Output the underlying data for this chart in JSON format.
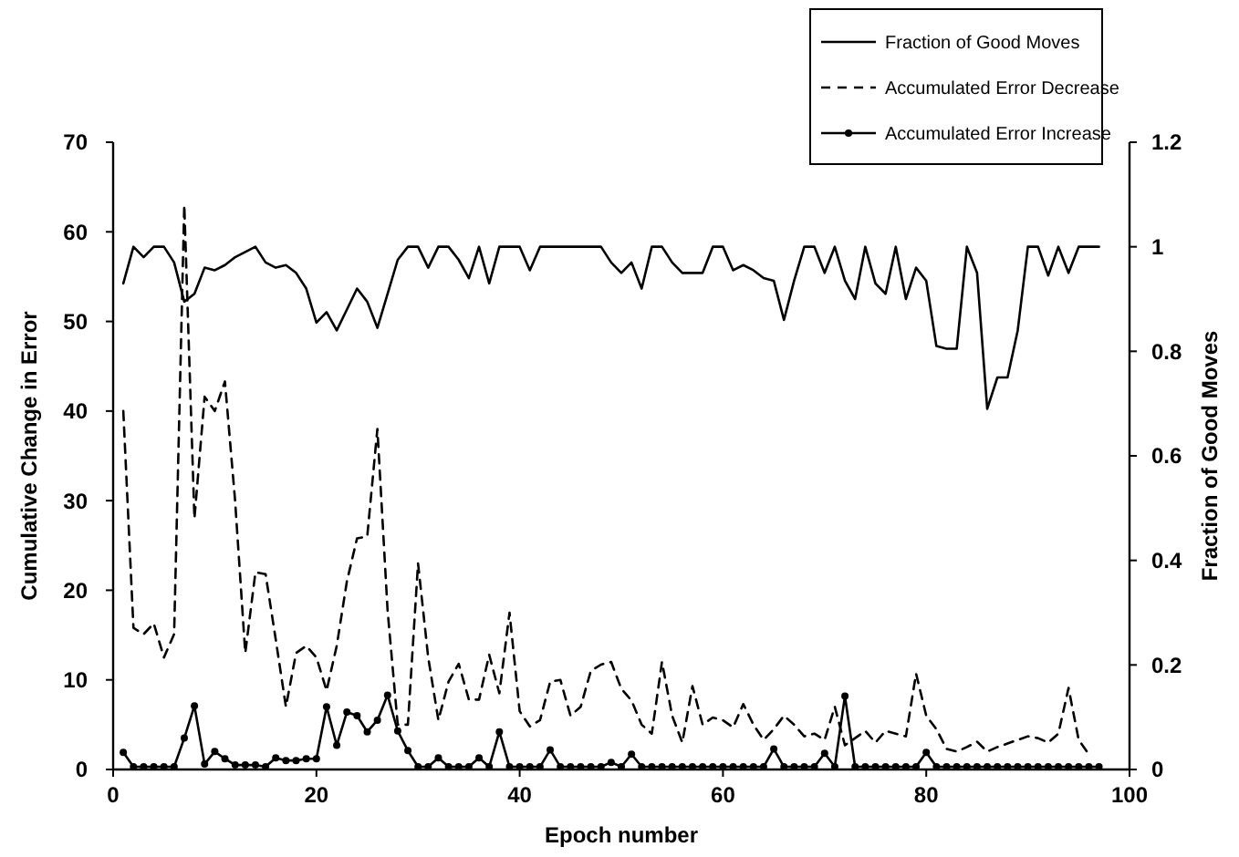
{
  "chart_data": {
    "type": "line",
    "xlabel": "Epoch number",
    "ylabel": "Cumulative Change in Error",
    "y2label": "Fraction of Good Moves",
    "xlim": [
      0,
      100
    ],
    "xticks": [
      0,
      20,
      40,
      60,
      80,
      100
    ],
    "ylim": [
      0,
      70
    ],
    "yticks": [
      0,
      10,
      20,
      30,
      40,
      50,
      60,
      70
    ],
    "y2lim": [
      0,
      1.2
    ],
    "y2ticks": [
      0,
      0.2,
      0.4,
      0.6,
      0.8,
      1,
      1.2
    ],
    "grid": false,
    "legend": "top right",
    "x": [
      1,
      2,
      3,
      4,
      5,
      6,
      7,
      8,
      9,
      10,
      11,
      12,
      13,
      14,
      15,
      16,
      17,
      18,
      19,
      20,
      21,
      22,
      23,
      24,
      25,
      26,
      27,
      28,
      29,
      30,
      31,
      32,
      33,
      34,
      35,
      36,
      37,
      38,
      39,
      40,
      41,
      42,
      43,
      44,
      45,
      46,
      47,
      48,
      49,
      50,
      51,
      52,
      53,
      54,
      55,
      56,
      57,
      58,
      59,
      60,
      61,
      62,
      63,
      64,
      65,
      66,
      67,
      68,
      69,
      70,
      71,
      72,
      73,
      74,
      75,
      76,
      77,
      78,
      79,
      80,
      81,
      82,
      83,
      84,
      85,
      86,
      87,
      88,
      89,
      90,
      91,
      92,
      93,
      94,
      95,
      96,
      97
    ],
    "series": [
      {
        "name": "Fraction of Good Moves",
        "color": "#000000",
        "axis": "y2",
        "line_style": "solid",
        "marker": "none",
        "values": [
          0.93,
          1,
          0.98,
          1,
          1,
          0.97,
          0.895,
          0.91,
          0.96,
          0.955,
          0.965,
          0.98,
          0.99,
          1,
          0.97,
          0.96,
          0.965,
          0.95,
          0.92,
          0.855,
          0.875,
          0.84,
          0.88,
          0.92,
          0.895,
          0.845,
          0.91,
          0.975,
          1,
          1,
          0.96,
          1,
          1,
          0.975,
          0.94,
          1,
          0.93,
          1,
          1,
          1,
          0.955,
          1,
          1,
          1,
          1,
          1,
          1,
          1,
          0.97,
          0.95,
          0.97,
          0.92,
          1,
          1,
          0.97,
          0.95,
          0.95,
          0.95,
          1,
          1,
          0.955,
          0.965,
          0.955,
          0.94,
          0.935,
          0.86,
          0.935,
          1,
          1,
          0.95,
          1,
          0.935,
          0.9,
          1,
          0.93,
          0.91,
          1,
          0.9,
          0.96,
          0.935,
          0.81,
          0.805,
          0.805,
          1,
          0.95,
          0.69,
          0.75,
          0.75,
          0.84,
          1,
          1,
          0.945,
          1,
          0.95,
          1,
          1,
          1
        ]
      },
      {
        "name": "Accumulated Error Decrease",
        "color": "#000000",
        "line_style": "dashed",
        "marker": "none",
        "values": [
          40,
          15.8,
          15.1,
          16.3,
          12.5,
          15.1,
          63,
          28,
          41.6,
          40,
          43.3,
          30,
          13,
          22,
          21.8,
          14.5,
          7,
          13,
          13.8,
          12.5,
          8.8,
          13.8,
          21,
          25.8,
          26,
          38,
          17.8,
          5,
          5,
          23,
          12.5,
          5.5,
          9.8,
          11.8,
          7.8,
          7.8,
          12.8,
          8.5,
          17.5,
          6.5,
          4.8,
          5.5,
          9.8,
          10,
          6,
          7,
          11,
          11.7,
          12,
          9,
          7.7,
          5,
          4,
          12,
          6,
          3,
          9.3,
          5,
          5.8,
          5.5,
          4.7,
          7.3,
          5,
          3.3,
          4.5,
          6,
          5,
          3.7,
          4,
          3.3,
          7,
          2.7,
          3.5,
          4.3,
          3,
          4.3,
          4,
          3.7,
          10.7,
          6,
          4.5,
          2.3,
          2,
          2.5,
          3.1,
          2,
          2.5,
          2.9,
          3.3,
          3.7,
          3.5,
          3,
          4,
          9.1,
          3.3,
          1.7,
          null
        ]
      },
      {
        "name": "Accumulated Error Increase",
        "color": "#000000",
        "line_style": "solid",
        "marker": "circle",
        "values": [
          1.9,
          0.3,
          0.3,
          0.3,
          0.3,
          0.3,
          3.5,
          7.1,
          0.6,
          2,
          1.2,
          0.5,
          0.5,
          0.5,
          0.3,
          1.3,
          1,
          1,
          1.2,
          1.2,
          7,
          2.7,
          6.4,
          6,
          4.2,
          5.5,
          8.3,
          4.3,
          2.1,
          0.3,
          0.3,
          1.3,
          0.3,
          0.3,
          0.3,
          1.3,
          0.3,
          4.2,
          0.3,
          0.3,
          0.3,
          0.3,
          2.2,
          0.3,
          0.3,
          0.3,
          0.3,
          0.3,
          0.8,
          0.3,
          1.7,
          0.3,
          0.3,
          0.3,
          0.3,
          0.3,
          0.3,
          0.3,
          0.3,
          0.3,
          0.3,
          0.3,
          0.3,
          0.3,
          2.3,
          0.3,
          0.3,
          0.3,
          0.3,
          1.8,
          0.3,
          8.2,
          0.3,
          0.3,
          0.3,
          0.3,
          0.3,
          0.3,
          0.3,
          1.9,
          0.3,
          0.3,
          0.3,
          0.3,
          0.3,
          0.3,
          0.3,
          0.3,
          0.3,
          0.3,
          0.3,
          0.3,
          0.3,
          0.3,
          0.3,
          0.3,
          0.3
        ]
      }
    ]
  }
}
